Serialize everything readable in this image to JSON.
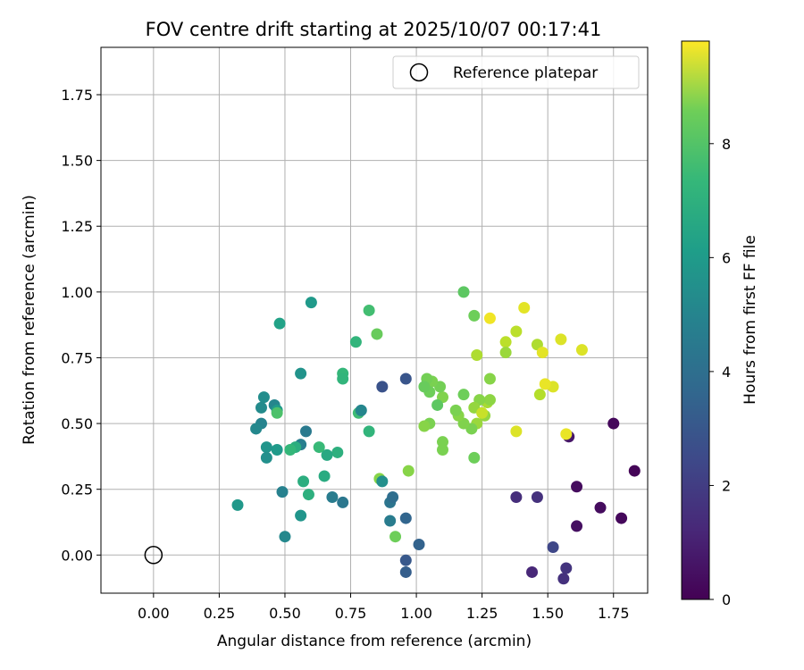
{
  "chart_data": {
    "type": "scatter",
    "title": "FOV centre drift starting at 2025/10/07 00:17:41",
    "xlabel": "Angular distance from reference (arcmin)",
    "ylabel": "Rotation from reference (arcmin)",
    "xlim": [
      -0.2,
      1.88
    ],
    "ylim": [
      -0.145,
      1.93
    ],
    "x_ticks": [
      0.0,
      0.25,
      0.5,
      0.75,
      1.0,
      1.25,
      1.5,
      1.75
    ],
    "x_tick_labels": [
      "0.00",
      "0.25",
      "0.50",
      "0.75",
      "1.00",
      "1.25",
      "1.50",
      "1.75"
    ],
    "y_ticks": [
      0.0,
      0.25,
      0.5,
      0.75,
      1.0,
      1.25,
      1.5,
      1.75
    ],
    "y_tick_labels": [
      "0.00",
      "0.25",
      "0.50",
      "0.75",
      "1.00",
      "1.25",
      "1.50",
      "1.75"
    ],
    "grid": true,
    "legend": {
      "position": "top-right",
      "entries": [
        {
          "label": "Reference platepar",
          "marker": "open-circle"
        }
      ]
    },
    "reference_point": {
      "x": 0.0,
      "y": 0.0,
      "label": "Reference platepar"
    },
    "colorbar": {
      "label": "Hours from first FF file",
      "min": 0,
      "max": 9.8,
      "ticks": [
        0,
        2,
        4,
        6,
        8
      ],
      "tick_labels": [
        "0",
        "2",
        "4",
        "6",
        "8"
      ],
      "colormap": "viridis"
    },
    "series": [
      {
        "points": [
          {
            "x": 1.75,
            "y": 0.5,
            "h": 0.2
          },
          {
            "x": 1.83,
            "y": 0.32,
            "h": 0.1
          },
          {
            "x": 1.78,
            "y": 0.14,
            "h": 0.2
          },
          {
            "x": 1.7,
            "y": 0.18,
            "h": 0.3
          },
          {
            "x": 1.61,
            "y": 0.26,
            "h": 0.3
          },
          {
            "x": 1.61,
            "y": 0.11,
            "h": 0.4
          },
          {
            "x": 1.58,
            "y": 0.45,
            "h": 0.6
          },
          {
            "x": 1.57,
            "y": -0.05,
            "h": 1.5
          },
          {
            "x": 1.56,
            "y": -0.09,
            "h": 1.4
          },
          {
            "x": 1.52,
            "y": 0.03,
            "h": 2.1
          },
          {
            "x": 1.46,
            "y": 0.22,
            "h": 1.4
          },
          {
            "x": 1.44,
            "y": -0.065,
            "h": 1.1
          },
          {
            "x": 1.38,
            "y": 0.22,
            "h": 1.3
          },
          {
            "x": 1.38,
            "y": 0.47,
            "h": 9.3
          },
          {
            "x": 1.57,
            "y": 0.46,
            "h": 9.5
          },
          {
            "x": 1.52,
            "y": 0.64,
            "h": 9.3
          },
          {
            "x": 1.49,
            "y": 0.65,
            "h": 9.5
          },
          {
            "x": 1.47,
            "y": 0.61,
            "h": 8.7
          },
          {
            "x": 1.46,
            "y": 0.8,
            "h": 8.6
          },
          {
            "x": 1.48,
            "y": 0.77,
            "h": 9.4
          },
          {
            "x": 1.55,
            "y": 0.82,
            "h": 9.3
          },
          {
            "x": 1.63,
            "y": 0.78,
            "h": 9.3
          },
          {
            "x": 1.41,
            "y": 0.94,
            "h": 9.4
          },
          {
            "x": 1.38,
            "y": 0.85,
            "h": 8.8
          },
          {
            "x": 1.34,
            "y": 0.81,
            "h": 8.8
          },
          {
            "x": 1.34,
            "y": 0.77,
            "h": 8.3
          },
          {
            "x": 1.28,
            "y": 0.9,
            "h": 9.6
          },
          {
            "x": 1.23,
            "y": 0.76,
            "h": 8.6
          },
          {
            "x": 1.22,
            "y": 0.91,
            "h": 7.6
          },
          {
            "x": 1.18,
            "y": 1.0,
            "h": 7.3
          },
          {
            "x": 1.28,
            "y": 0.67,
            "h": 8.0
          },
          {
            "x": 1.27,
            "y": 0.58,
            "h": 8.5
          },
          {
            "x": 1.28,
            "y": 0.59,
            "h": 8.1
          },
          {
            "x": 1.24,
            "y": 0.59,
            "h": 8.0
          },
          {
            "x": 1.22,
            "y": 0.56,
            "h": 8.2
          },
          {
            "x": 1.26,
            "y": 0.53,
            "h": 8.2
          },
          {
            "x": 1.25,
            "y": 0.54,
            "h": 9.0
          },
          {
            "x": 1.23,
            "y": 0.5,
            "h": 8.3
          },
          {
            "x": 1.21,
            "y": 0.48,
            "h": 7.8
          },
          {
            "x": 1.18,
            "y": 0.5,
            "h": 7.9
          },
          {
            "x": 1.16,
            "y": 0.53,
            "h": 8.0
          },
          {
            "x": 1.15,
            "y": 0.55,
            "h": 7.8
          },
          {
            "x": 1.18,
            "y": 0.61,
            "h": 7.6
          },
          {
            "x": 1.22,
            "y": 0.37,
            "h": 7.6
          },
          {
            "x": 1.1,
            "y": 0.6,
            "h": 7.9
          },
          {
            "x": 1.09,
            "y": 0.64,
            "h": 7.7
          },
          {
            "x": 1.06,
            "y": 0.66,
            "h": 7.8
          },
          {
            "x": 1.04,
            "y": 0.67,
            "h": 7.7
          },
          {
            "x": 1.05,
            "y": 0.62,
            "h": 7.6
          },
          {
            "x": 1.03,
            "y": 0.64,
            "h": 7.5
          },
          {
            "x": 1.08,
            "y": 0.57,
            "h": 7.3
          },
          {
            "x": 1.05,
            "y": 0.5,
            "h": 7.8
          },
          {
            "x": 1.03,
            "y": 0.49,
            "h": 8.0
          },
          {
            "x": 1.1,
            "y": 0.43,
            "h": 7.8
          },
          {
            "x": 1.1,
            "y": 0.4,
            "h": 7.8
          },
          {
            "x": 0.97,
            "y": 0.32,
            "h": 8.0
          },
          {
            "x": 0.92,
            "y": 0.07,
            "h": 7.6
          },
          {
            "x": 0.86,
            "y": 0.29,
            "h": 8.0
          },
          {
            "x": 0.85,
            "y": 0.84,
            "h": 7.5
          },
          {
            "x": 0.82,
            "y": 0.93,
            "h": 6.8
          },
          {
            "x": 0.77,
            "y": 0.81,
            "h": 6.4
          },
          {
            "x": 0.72,
            "y": 0.69,
            "h": 6.5
          },
          {
            "x": 0.72,
            "y": 0.67,
            "h": 6.4
          },
          {
            "x": 0.78,
            "y": 0.54,
            "h": 6.7
          },
          {
            "x": 0.79,
            "y": 0.55,
            "h": 4.5
          },
          {
            "x": 0.82,
            "y": 0.47,
            "h": 6.4
          },
          {
            "x": 0.87,
            "y": 0.64,
            "h": 2.5
          },
          {
            "x": 0.96,
            "y": 0.67,
            "h": 2.6
          },
          {
            "x": 0.87,
            "y": 0.28,
            "h": 4.9
          },
          {
            "x": 0.9,
            "y": 0.2,
            "h": 3.8
          },
          {
            "x": 0.91,
            "y": 0.22,
            "h": 3.5
          },
          {
            "x": 0.9,
            "y": 0.13,
            "h": 4.1
          },
          {
            "x": 0.96,
            "y": 0.14,
            "h": 3.2
          },
          {
            "x": 0.96,
            "y": -0.02,
            "h": 2.7
          },
          {
            "x": 0.96,
            "y": -0.065,
            "h": 2.9
          },
          {
            "x": 1.01,
            "y": 0.04,
            "h": 3.1
          },
          {
            "x": 0.72,
            "y": 0.2,
            "h": 3.9
          },
          {
            "x": 0.68,
            "y": 0.22,
            "h": 4.1
          },
          {
            "x": 0.7,
            "y": 0.39,
            "h": 6.2
          },
          {
            "x": 0.66,
            "y": 0.38,
            "h": 5.9
          },
          {
            "x": 0.63,
            "y": 0.41,
            "h": 6.6
          },
          {
            "x": 0.65,
            "y": 0.3,
            "h": 6.0
          },
          {
            "x": 0.59,
            "y": 0.23,
            "h": 6.2
          },
          {
            "x": 0.57,
            "y": 0.28,
            "h": 6.1
          },
          {
            "x": 0.56,
            "y": 0.15,
            "h": 5.1
          },
          {
            "x": 0.6,
            "y": 0.96,
            "h": 5.3
          },
          {
            "x": 0.56,
            "y": 0.69,
            "h": 5.0
          },
          {
            "x": 0.58,
            "y": 0.47,
            "h": 4.0
          },
          {
            "x": 0.56,
            "y": 0.42,
            "h": 4.2
          },
          {
            "x": 0.54,
            "y": 0.41,
            "h": 6.1
          },
          {
            "x": 0.52,
            "y": 0.4,
            "h": 6.5
          },
          {
            "x": 0.49,
            "y": 0.24,
            "h": 4.3
          },
          {
            "x": 0.5,
            "y": 0.07,
            "h": 4.6
          },
          {
            "x": 0.48,
            "y": 0.88,
            "h": 5.6
          },
          {
            "x": 0.46,
            "y": 0.57,
            "h": 4.5
          },
          {
            "x": 0.47,
            "y": 0.55,
            "h": 5.3
          },
          {
            "x": 0.47,
            "y": 0.54,
            "h": 7.0
          },
          {
            "x": 0.47,
            "y": 0.4,
            "h": 5.3
          },
          {
            "x": 0.43,
            "y": 0.41,
            "h": 5.1
          },
          {
            "x": 0.43,
            "y": 0.37,
            "h": 4.9
          },
          {
            "x": 0.42,
            "y": 0.6,
            "h": 4.8
          },
          {
            "x": 0.41,
            "y": 0.56,
            "h": 4.7
          },
          {
            "x": 0.41,
            "y": 0.5,
            "h": 4.4
          },
          {
            "x": 0.39,
            "y": 0.48,
            "h": 4.6
          },
          {
            "x": 0.32,
            "y": 0.19,
            "h": 5.2
          }
        ]
      }
    ]
  }
}
